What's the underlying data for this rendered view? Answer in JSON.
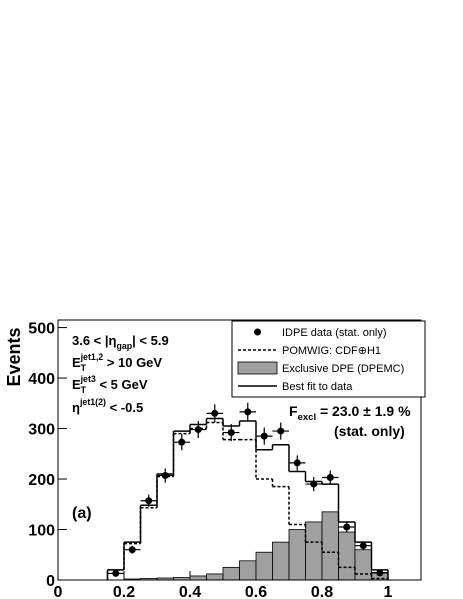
{
  "chart_data": {
    "type": "histogram",
    "y_label": "Events",
    "bins": [
      0.15,
      0.2,
      0.25,
      0.3,
      0.35,
      0.4,
      0.45,
      0.5,
      0.55,
      0.6,
      0.65,
      0.7,
      0.75,
      0.8,
      0.85,
      0.9,
      0.95,
      1.0
    ],
    "series": [
      {
        "name": "IDPE data (stat. only)",
        "style": "points",
        "color": "#000000",
        "values": [
          13,
          60,
          157,
          207,
          273,
          298,
          330,
          292,
          333,
          285,
          295,
          232,
          190,
          203,
          105,
          68,
          14
        ],
        "errors": [
          4,
          8,
          12,
          14,
          16,
          17,
          18,
          17,
          18,
          17,
          17,
          15,
          14,
          14,
          10,
          8,
          4
        ]
      },
      {
        "name": "POMWIG: CDF⊕H1",
        "style": "dashed",
        "color": "#000000",
        "values": [
          20,
          72,
          143,
          205,
          290,
          300,
          312,
          278,
          278,
          200,
          185,
          110,
          75,
          55,
          25,
          12,
          3
        ]
      },
      {
        "name": "Exclusive DPE (DPEMC)",
        "style": "filled",
        "color": "#a0a0a0",
        "values": [
          0,
          2,
          3,
          4,
          5,
          8,
          12,
          25,
          38,
          55,
          75,
          100,
          115,
          135,
          95,
          60,
          15
        ]
      },
      {
        "name": "Best fit to data",
        "style": "step",
        "color": "#000000",
        "values": [
          20,
          75,
          148,
          210,
          295,
          308,
          320,
          305,
          315,
          258,
          268,
          215,
          195,
          190,
          115,
          75,
          20
        ]
      }
    ],
    "xlim": [
      0,
      1.1
    ],
    "ylim": [
      0,
      515
    ],
    "xticks": [
      0,
      0.2,
      0.4,
      0.6,
      0.8,
      1
    ],
    "yticks": [
      0,
      100,
      200,
      300,
      400,
      500
    ],
    "legend": "top-right",
    "annotations": [
      {
        "parts": [
          {
            "text": "3.6 < |η"
          },
          {
            "text": "gap",
            "pos": "sub"
          },
          {
            "text": "| < 5.9"
          }
        ]
      },
      {
        "parts": [
          {
            "text": "E"
          },
          {
            "text": "T",
            "pos": "sub"
          },
          {
            "text": "jet1,2",
            "pos": "sup"
          },
          {
            "text": " > 10 GeV"
          }
        ]
      },
      {
        "parts": [
          {
            "text": "E"
          },
          {
            "text": "T",
            "pos": "sub"
          },
          {
            "text": "jet3",
            "pos": "sup"
          },
          {
            "text": " < 5 GeV"
          }
        ]
      },
      {
        "parts": [
          {
            "text": "η"
          },
          {
            "text": "jet1(2)",
            "pos": "sup"
          },
          {
            "text": " < -0.5"
          }
        ]
      },
      {
        "parts": [
          {
            "text": "F"
          },
          {
            "text": "excl",
            "pos": "sub"
          },
          {
            "text": " = 23.0 ± 1.9 %"
          }
        ]
      },
      {
        "parts": [
          {
            "text": "(stat. only)"
          }
        ]
      },
      {
        "parts": [
          {
            "text": "(a)"
          }
        ]
      }
    ]
  }
}
